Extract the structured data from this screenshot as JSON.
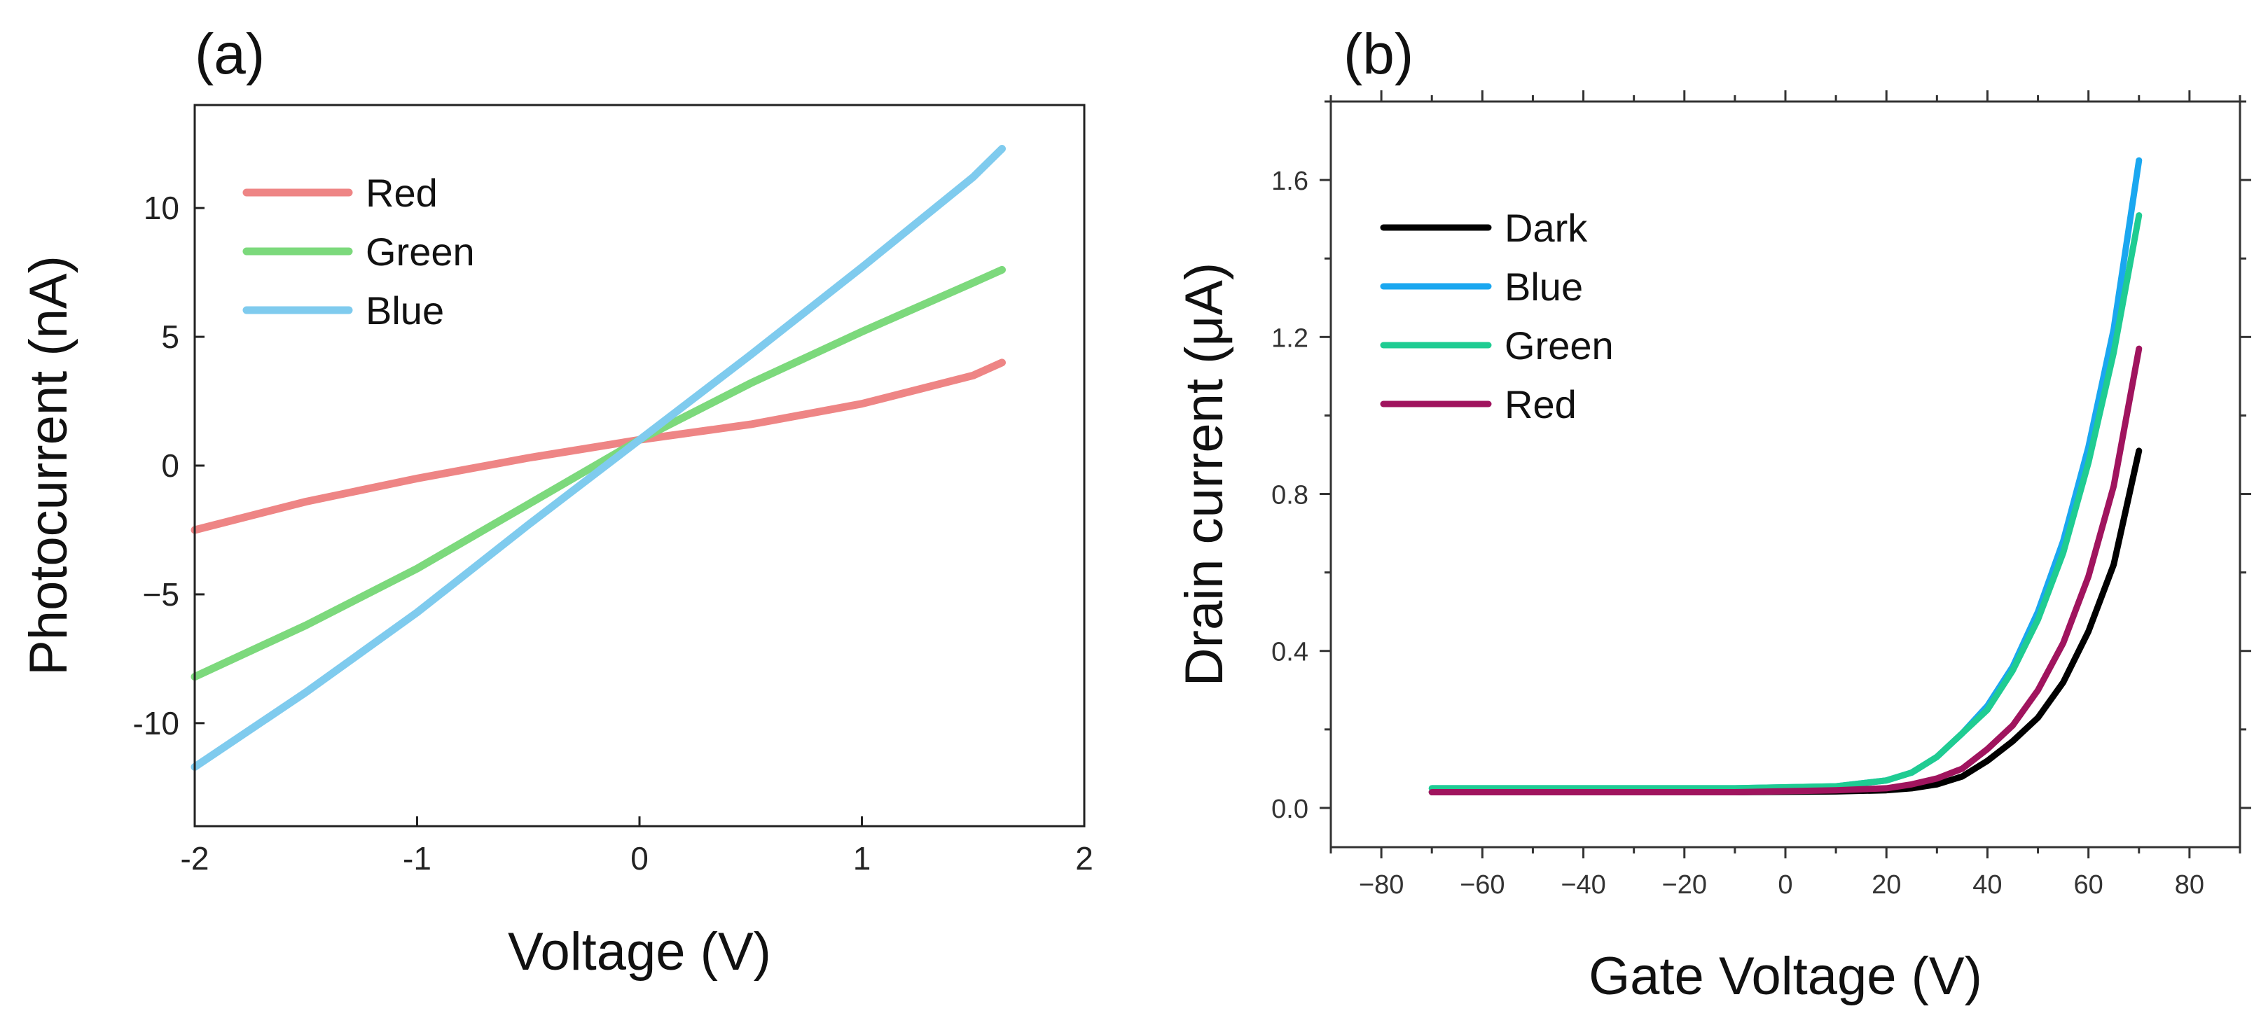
{
  "chart_data": [
    {
      "type": "line",
      "panel_label": "(a)",
      "xlabel": "Voltage (V)",
      "ylabel": "Photocurrent (nA)",
      "xlim": [
        -2,
        2
      ],
      "ylim": [
        -14,
        14
      ],
      "x_ticks": [
        "-2",
        "-1",
        "0",
        "1",
        "2"
      ],
      "y_ticks": [
        "10",
        "5",
        "0",
        "−5",
        "-10"
      ],
      "legend_position": "top-left",
      "series": [
        {
          "name": "Red",
          "color": "#ee8585",
          "x": [
            -2.0,
            -1.5,
            -1.0,
            -0.5,
            0.0,
            0.5,
            1.0,
            1.5,
            1.63
          ],
          "y": [
            -2.5,
            -1.4,
            -0.5,
            0.3,
            1.0,
            1.6,
            2.4,
            3.5,
            4.0
          ]
        },
        {
          "name": "Green",
          "color": "#7cd97c",
          "x": [
            -2.0,
            -1.5,
            -1.0,
            -0.5,
            0.0,
            0.5,
            1.0,
            1.5,
            1.63
          ],
          "y": [
            -8.2,
            -6.2,
            -4.0,
            -1.5,
            1.0,
            3.2,
            5.2,
            7.1,
            7.6
          ]
        },
        {
          "name": "Blue",
          "color": "#7fcbee",
          "x": [
            -2.0,
            -1.5,
            -1.0,
            -0.5,
            0.0,
            0.5,
            1.0,
            1.5,
            1.63
          ],
          "y": [
            -11.7,
            -8.8,
            -5.7,
            -2.3,
            1.0,
            4.3,
            7.7,
            11.2,
            12.3
          ]
        }
      ]
    },
    {
      "type": "line",
      "panel_label": "(b)",
      "xlabel": "Gate Voltage (V)",
      "ylabel": "Drain current (μA)",
      "xlim": [
        -90,
        90
      ],
      "ylim": [
        -0.1,
        1.8
      ],
      "x_ticks": [
        "−80",
        "−60",
        "−40",
        "−20",
        "0",
        "20",
        "40",
        "60",
        "80"
      ],
      "y_ticks": [
        "0.0",
        "0.4",
        "0.8",
        "1.2",
        "1.6"
      ],
      "legend_position": "top-left",
      "series": [
        {
          "name": "Dark",
          "color": "#000000",
          "x": [
            -70,
            -50,
            -30,
            -10,
            10,
            20,
            25,
            30,
            35,
            40,
            45,
            50,
            55,
            60,
            65,
            70
          ],
          "y": [
            0.04,
            0.04,
            0.04,
            0.04,
            0.042,
            0.045,
            0.05,
            0.06,
            0.08,
            0.12,
            0.17,
            0.23,
            0.32,
            0.45,
            0.62,
            0.91
          ]
        },
        {
          "name": "Blue",
          "color": "#1aa7f0",
          "x": [
            -70,
            -50,
            -30,
            -10,
            10,
            20,
            25,
            30,
            35,
            40,
            45,
            50,
            55,
            60,
            65,
            70
          ],
          "y": [
            0.05,
            0.05,
            0.05,
            0.05,
            0.055,
            0.07,
            0.09,
            0.13,
            0.19,
            0.26,
            0.36,
            0.5,
            0.68,
            0.92,
            1.22,
            1.65
          ]
        },
        {
          "name": "Green",
          "color": "#1fcc92",
          "x": [
            -70,
            -50,
            -30,
            -10,
            10,
            20,
            25,
            30,
            35,
            40,
            45,
            50,
            55,
            60,
            65,
            70
          ],
          "y": [
            0.05,
            0.05,
            0.05,
            0.05,
            0.055,
            0.07,
            0.09,
            0.13,
            0.19,
            0.25,
            0.35,
            0.48,
            0.65,
            0.88,
            1.16,
            1.51
          ]
        },
        {
          "name": "Red",
          "color": "#a0145e",
          "x": [
            -70,
            -50,
            -30,
            -10,
            10,
            20,
            25,
            30,
            35,
            40,
            45,
            50,
            55,
            60,
            65,
            70
          ],
          "y": [
            0.04,
            0.04,
            0.04,
            0.04,
            0.045,
            0.05,
            0.06,
            0.075,
            0.1,
            0.15,
            0.21,
            0.3,
            0.42,
            0.59,
            0.82,
            1.17
          ]
        }
      ]
    }
  ]
}
